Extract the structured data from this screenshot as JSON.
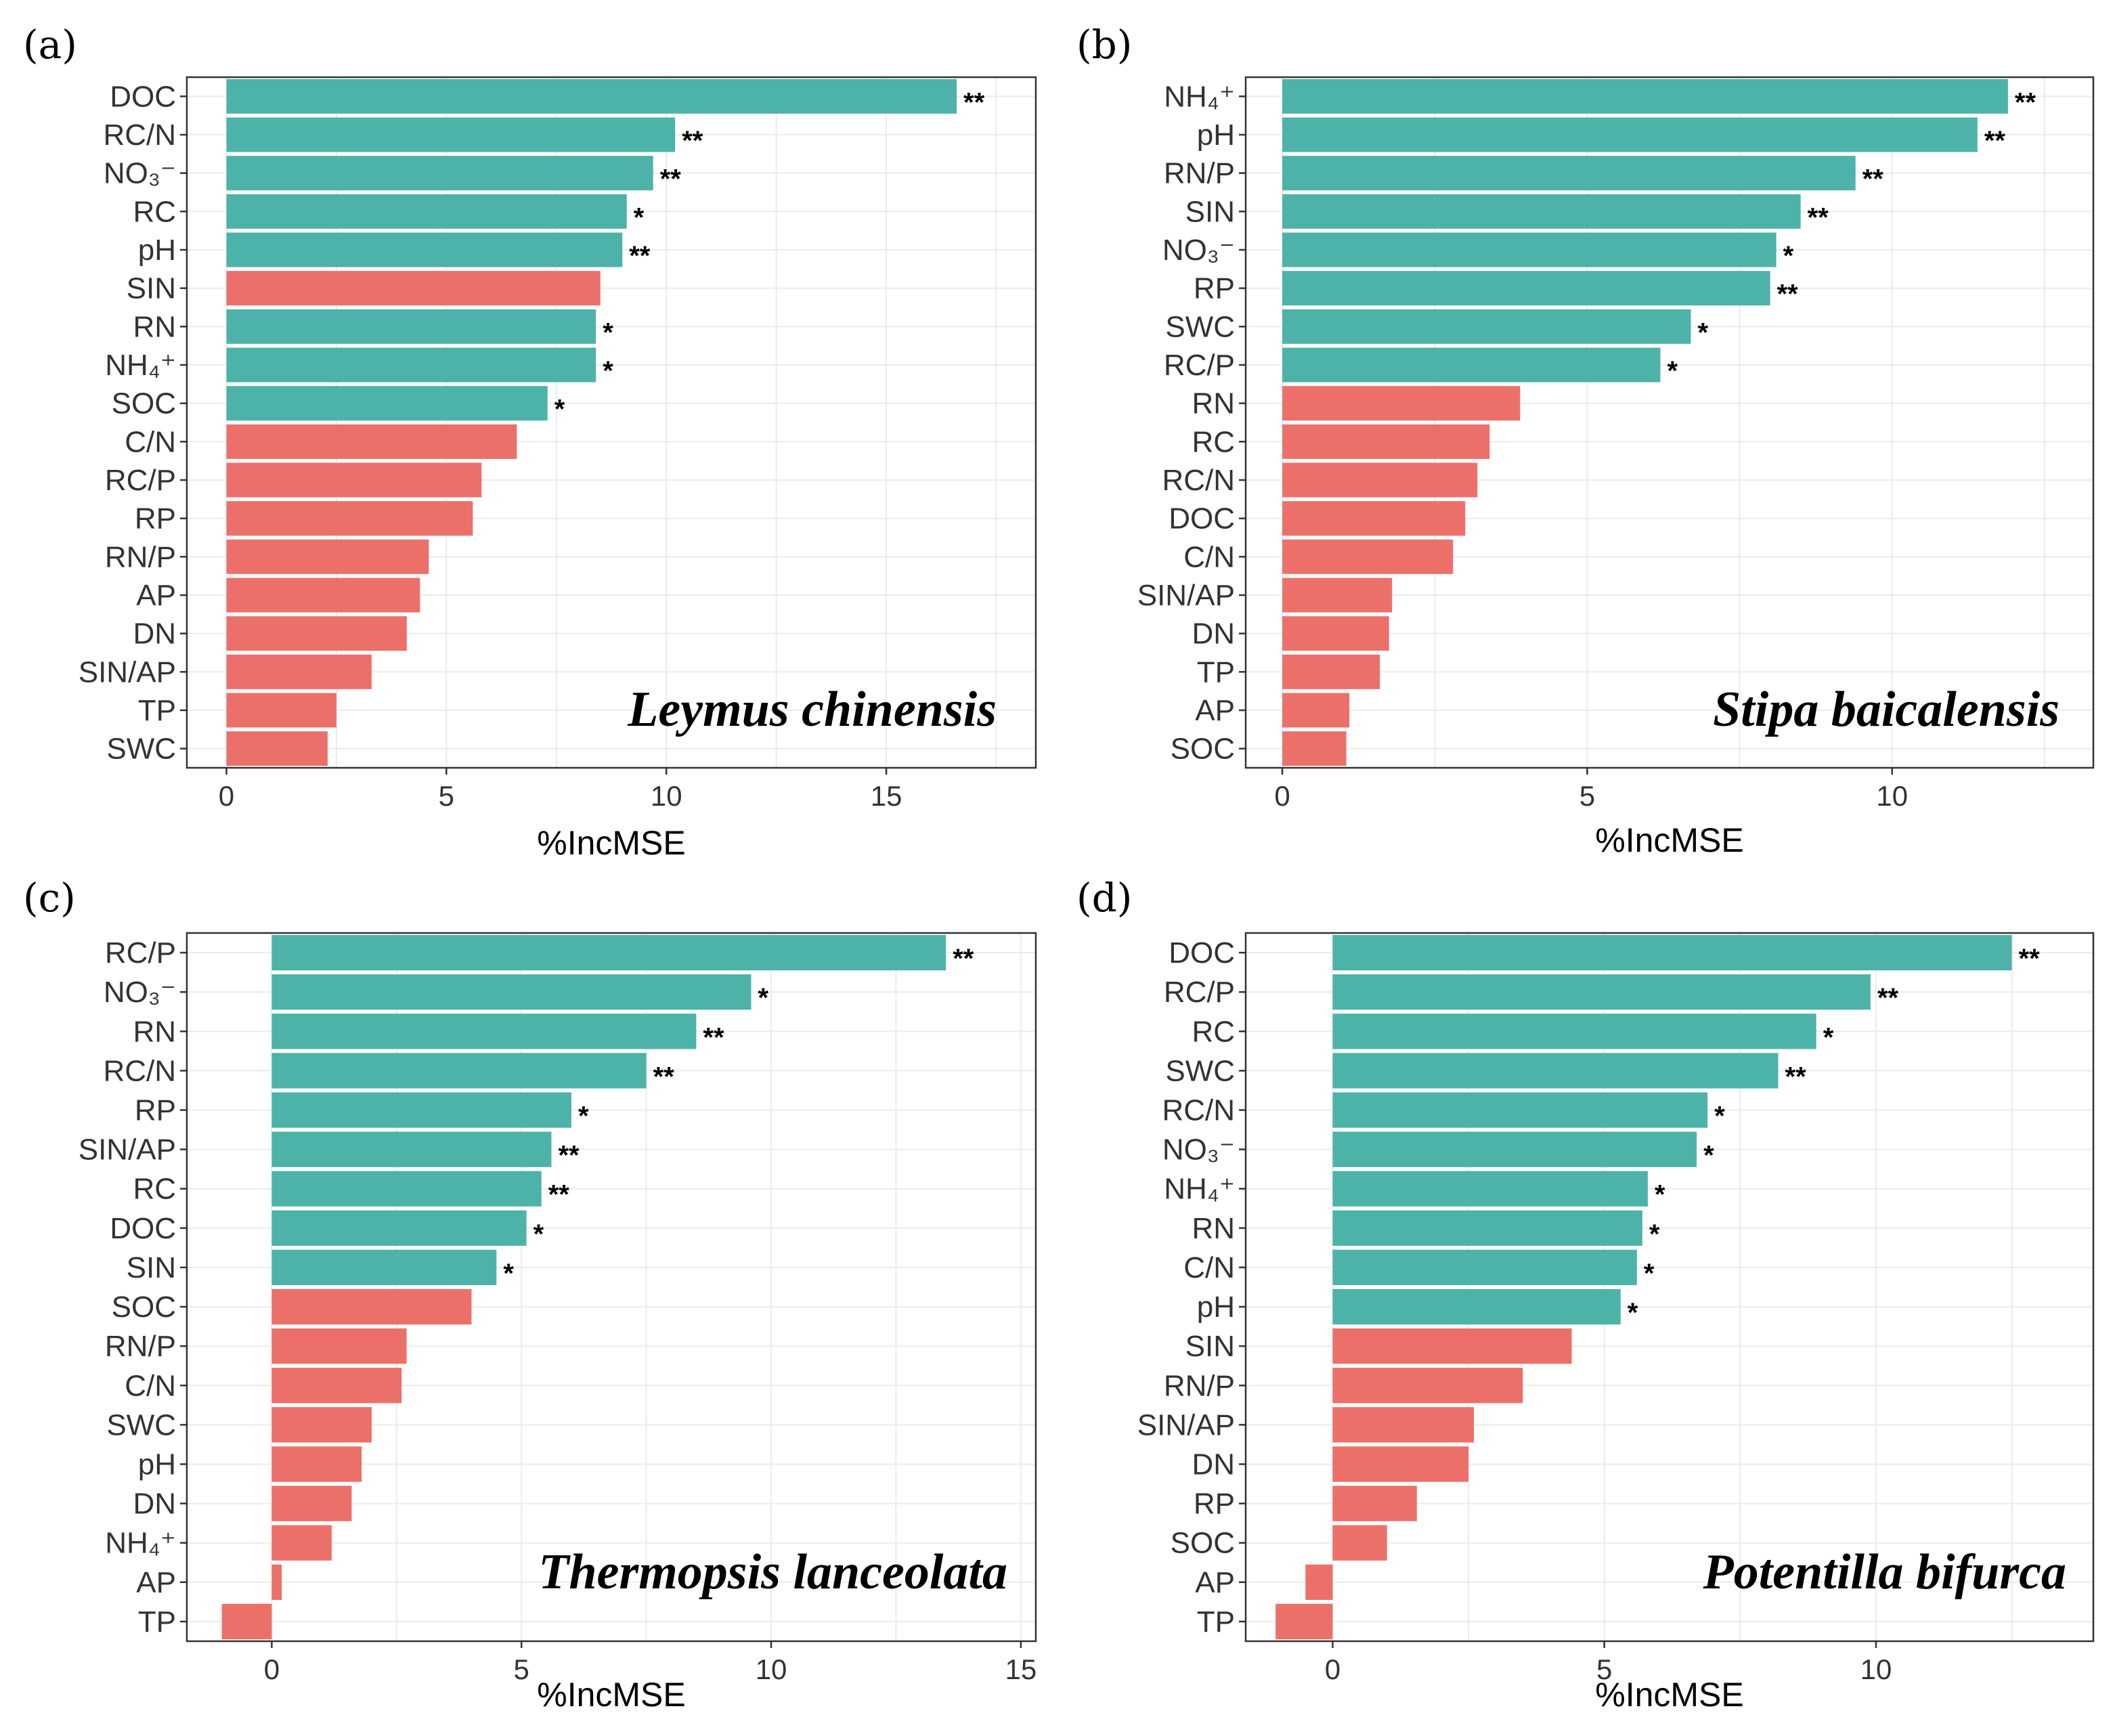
{
  "colors": {
    "significant": "#4db3a8",
    "nonsignificant": "#ec706a"
  },
  "chart_data": [
    {
      "type": "bar",
      "panel": "(a)",
      "title": "Leymus chinensis",
      "xlabel": "%IncMSE",
      "xlim": [
        -0.9,
        18.4
      ],
      "xticks": [
        0,
        5,
        10,
        15
      ],
      "categories": [
        "DOC",
        "RC/N",
        "NO₃⁻",
        "RC",
        "pH",
        "SIN",
        "RN",
        "NH₄⁺",
        "SOC",
        "C/N",
        "RC/P",
        "RP",
        "RN/P",
        "AP",
        "DN",
        "SIN/AP",
        "TP",
        "SWC"
      ],
      "values": [
        16.6,
        10.2,
        9.7,
        9.1,
        9.0,
        8.5,
        8.4,
        8.4,
        7.3,
        6.6,
        5.8,
        5.6,
        4.6,
        4.4,
        4.1,
        3.3,
        2.5,
        2.3
      ],
      "significance": [
        "**",
        "**",
        "**",
        "*",
        "**",
        "",
        "*",
        "*",
        "*",
        "",
        "",
        "",
        "",
        "",
        "",
        "",
        "",
        ""
      ]
    },
    {
      "type": "bar",
      "panel": "(b)",
      "title": "Stipa baicalensis",
      "xlabel": "%IncMSE",
      "xlim": [
        -0.6,
        13.3
      ],
      "xticks": [
        0,
        5,
        10
      ],
      "categories": [
        "NH₄⁺",
        "pH",
        "RN/P",
        "SIN",
        "NO₃⁻",
        "RP",
        "SWC",
        "RC/P",
        "RN",
        "RC",
        "RC/N",
        "DOC",
        "C/N",
        "SIN/AP",
        "DN",
        "TP",
        "AP",
        "SOC"
      ],
      "values": [
        11.9,
        11.4,
        9.4,
        8.5,
        8.1,
        8.0,
        6.7,
        6.2,
        3.9,
        3.4,
        3.2,
        3.0,
        2.8,
        1.8,
        1.75,
        1.6,
        1.1,
        1.05
      ],
      "significance": [
        "**",
        "**",
        "**",
        "**",
        "*",
        "**",
        "*",
        "*",
        "",
        "",
        "",
        "",
        "",
        "",
        "",
        "",
        "",
        ""
      ]
    },
    {
      "type": "bar",
      "panel": "(c)",
      "title": "Thermopsis lanceolata",
      "xlabel": "%IncMSE",
      "xlim": [
        -1.7,
        15.3
      ],
      "xticks": [
        0,
        5,
        10,
        15
      ],
      "categories": [
        "RC/P",
        "NO₃⁻",
        "RN",
        "RC/N",
        "RP",
        "SIN/AP",
        "RC",
        "DOC",
        "SIN",
        "SOC",
        "RN/P",
        "C/N",
        "SWC",
        "pH",
        "DN",
        "NH₄⁺",
        "AP",
        "TP"
      ],
      "values": [
        13.5,
        9.6,
        8.5,
        7.5,
        6.0,
        5.6,
        5.4,
        5.1,
        4.5,
        4.0,
        2.7,
        2.6,
        2.0,
        1.8,
        1.6,
        1.2,
        0.2,
        -1.0
      ],
      "significance": [
        "**",
        "*",
        "**",
        "**",
        "*",
        "**",
        "**",
        "*",
        "*",
        "",
        "",
        "",
        "",
        "",
        "",
        "",
        "",
        ""
      ]
    },
    {
      "type": "bar",
      "panel": "(d)",
      "title": "Potentilla bifurca",
      "xlabel": "%IncMSE",
      "xlim": [
        -1.6,
        14.0
      ],
      "xticks": [
        0,
        5,
        10
      ],
      "categories": [
        "DOC",
        "RC/P",
        "RC",
        "SWC",
        "RC/N",
        "NO₃⁻",
        "NH₄⁺",
        "RN",
        "C/N",
        "pH",
        "SIN",
        "RN/P",
        "SIN/AP",
        "DN",
        "RP",
        "SOC",
        "AP",
        "TP"
      ],
      "values": [
        12.5,
        9.9,
        8.9,
        8.2,
        6.9,
        6.7,
        5.8,
        5.7,
        5.6,
        5.3,
        4.4,
        3.5,
        2.6,
        2.5,
        1.55,
        1.0,
        -0.5,
        -1.05
      ],
      "significance": [
        "**",
        "**",
        "*",
        "**",
        "*",
        "*",
        "*",
        "*",
        "*",
        "*",
        "",
        "",
        "",
        "",
        "",
        "",
        "",
        ""
      ]
    }
  ]
}
